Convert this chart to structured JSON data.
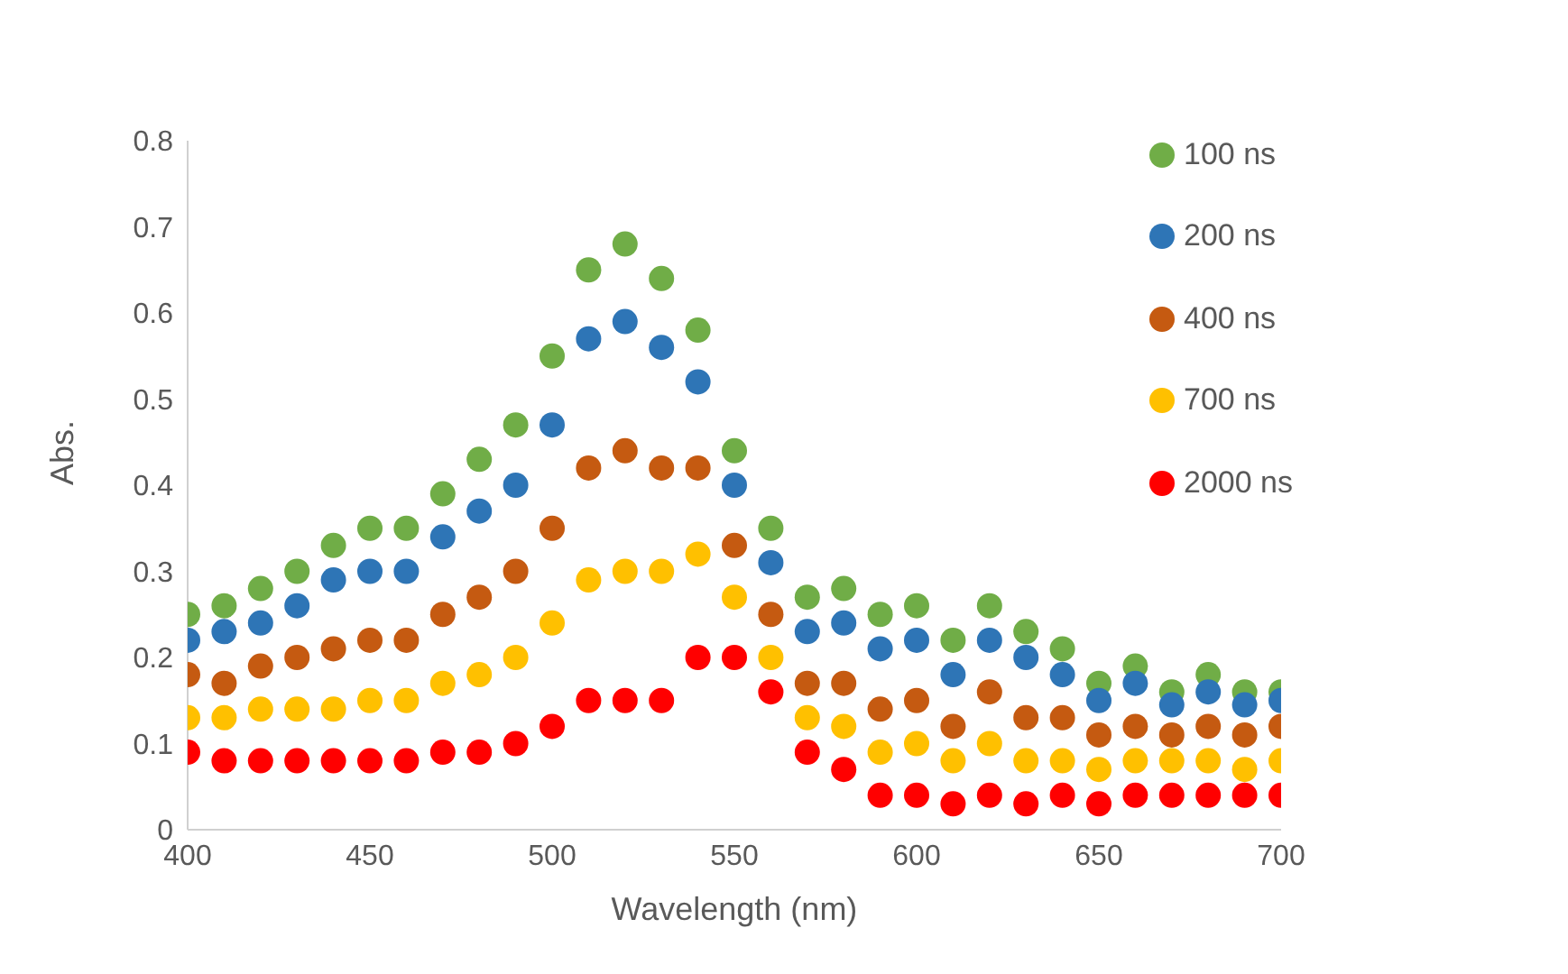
{
  "chart_data": {
    "type": "scatter",
    "xlabel": "Wavelength (nm)",
    "ylabel": "Abs.",
    "x": [
      400,
      410,
      420,
      430,
      440,
      450,
      460,
      470,
      480,
      490,
      500,
      510,
      520,
      530,
      540,
      550,
      560,
      570,
      580,
      590,
      600,
      610,
      620,
      630,
      640,
      650,
      660,
      670,
      680,
      690,
      700
    ],
    "xlim": [
      400,
      700
    ],
    "xticks": [
      400,
      450,
      500,
      550,
      600,
      650,
      700
    ],
    "ylim": [
      0,
      0.8
    ],
    "yticks": [
      0,
      0.1,
      0.2,
      0.3,
      0.4,
      0.5,
      0.6,
      0.7,
      0.8
    ],
    "grid": false,
    "legend": "top right",
    "marker": "circle",
    "series": [
      {
        "name": "100 ns",
        "color": "#70ad47",
        "values": [
          0.25,
          0.26,
          0.28,
          0.3,
          0.33,
          0.35,
          0.35,
          0.39,
          0.43,
          0.47,
          0.55,
          0.65,
          0.68,
          0.64,
          0.58,
          0.44,
          0.35,
          0.27,
          0.28,
          0.25,
          0.26,
          0.22,
          0.26,
          0.23,
          0.21,
          0.17,
          0.19,
          0.16,
          0.18,
          0.16,
          0.16
        ]
      },
      {
        "name": "200 ns",
        "color": "#2e75b6",
        "values": [
          0.22,
          0.23,
          0.24,
          0.26,
          0.29,
          0.3,
          0.3,
          0.34,
          0.37,
          0.4,
          0.47,
          0.57,
          0.59,
          0.56,
          0.52,
          0.4,
          0.31,
          0.23,
          0.24,
          0.21,
          0.22,
          0.18,
          0.22,
          0.2,
          0.18,
          0.15,
          0.17,
          0.145,
          0.16,
          0.145,
          0.15
        ]
      },
      {
        "name": "400 ns",
        "color": "#c55a11",
        "values": [
          0.18,
          0.17,
          0.19,
          0.2,
          0.21,
          0.22,
          0.22,
          0.25,
          0.27,
          0.3,
          0.35,
          0.42,
          0.44,
          0.42,
          0.42,
          0.33,
          0.25,
          0.17,
          0.17,
          0.14,
          0.15,
          0.12,
          0.16,
          0.13,
          0.13,
          0.11,
          0.12,
          0.11,
          0.12,
          0.11,
          0.12
        ]
      },
      {
        "name": "700 ns",
        "color": "#ffc000",
        "values": [
          0.13,
          0.13,
          0.14,
          0.14,
          0.14,
          0.15,
          0.15,
          0.17,
          0.18,
          0.2,
          0.24,
          0.29,
          0.3,
          0.3,
          0.32,
          0.27,
          0.2,
          0.13,
          0.12,
          0.09,
          0.1,
          0.08,
          0.1,
          0.08,
          0.08,
          0.07,
          0.08,
          0.08,
          0.08,
          0.07,
          0.08
        ]
      },
      {
        "name": "2000 ns",
        "color": "#ff0000",
        "values": [
          0.09,
          0.08,
          0.08,
          0.08,
          0.08,
          0.08,
          0.08,
          0.09,
          0.09,
          0.1,
          0.12,
          0.15,
          0.15,
          0.15,
          0.2,
          0.2,
          0.16,
          0.09,
          0.07,
          0.04,
          0.04,
          0.03,
          0.04,
          0.03,
          0.04,
          0.03,
          0.04,
          0.04,
          0.04,
          0.04,
          0.04
        ]
      }
    ]
  }
}
